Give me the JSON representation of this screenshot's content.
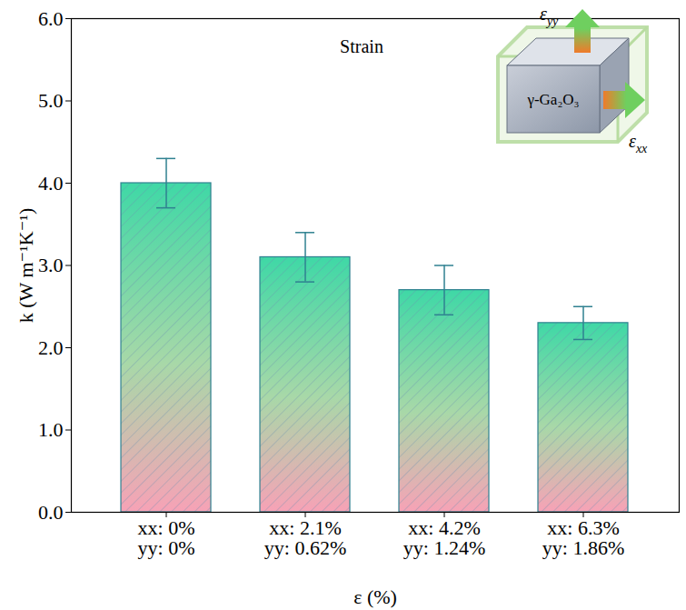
{
  "chart_data": {
    "type": "bar",
    "x_label": "ε (%)",
    "y_label": "k (W m⁻¹K⁻¹)",
    "categories": [
      "xx: 0%\nyy: 0%",
      "xx: 2.1%\nyy: 0.62%",
      "xx: 4.2%\nyy: 1.24%",
      "xx: 6.3%\nyy: 1.86%"
    ],
    "values": [
      4.0,
      3.1,
      2.7,
      2.3
    ],
    "errors": [
      0.3,
      0.3,
      0.3,
      0.2
    ],
    "ylim": [
      0,
      6
    ],
    "yticks": [
      0,
      1,
      2,
      3,
      4,
      5,
      6
    ],
    "grid": false,
    "annotations": [
      "Strain",
      "γ-Ga₂O₃",
      "εyy",
      "εxx"
    ]
  }
}
